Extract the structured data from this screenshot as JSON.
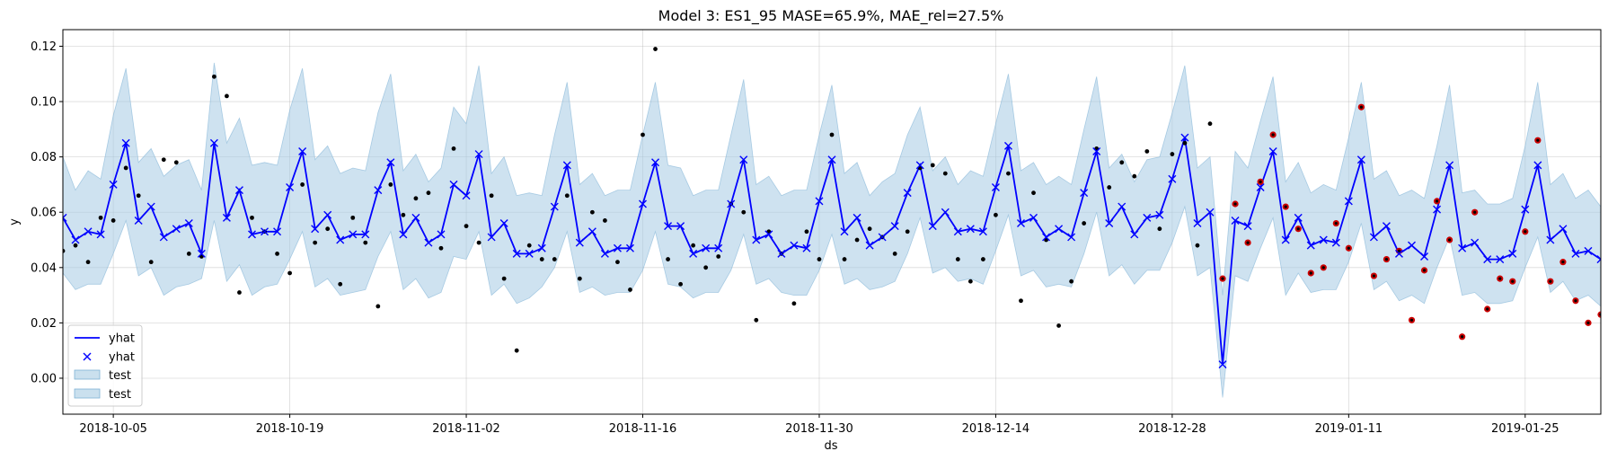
{
  "chart_data": {
    "type": "line",
    "title": "Model 3: ES1_95 MASE=65.9%, MAE_rel=27.5%",
    "xlabel": "ds",
    "ylabel": "y",
    "x_start": "2018-10-01",
    "x_end": "2019-01-31",
    "ylim": [
      -0.013,
      0.126
    ],
    "yticks": [
      "0.00",
      "0.02",
      "0.04",
      "0.06",
      "0.08",
      "0.10",
      "0.12"
    ],
    "ytick_values": [
      0.0,
      0.02,
      0.04,
      0.06,
      0.08,
      0.1,
      0.12
    ],
    "xticks": [
      {
        "date": "2018-10-05",
        "label": "2018-10-05"
      },
      {
        "date": "2018-10-19",
        "label": "2018-10-19"
      },
      {
        "date": "2018-11-02",
        "label": "2018-11-02"
      },
      {
        "date": "2018-11-16",
        "label": "2018-11-16"
      },
      {
        "date": "2018-11-30",
        "label": "2018-11-30"
      },
      {
        "date": "2018-12-14",
        "label": "2018-12-14"
      },
      {
        "date": "2018-12-28",
        "label": "2018-12-28"
      },
      {
        "date": "2019-01-11",
        "label": "2019-01-11"
      },
      {
        "date": "2019-01-25",
        "label": "2019-01-25"
      }
    ],
    "grid": true,
    "legend_position": "lower-left",
    "legend": [
      {
        "label": "yhat",
        "kind": "line"
      },
      {
        "label": "yhat",
        "kind": "marker"
      },
      {
        "label": "test",
        "kind": "band"
      },
      {
        "label": "test",
        "kind": "band"
      }
    ],
    "colors": {
      "yhat": "#0000ff",
      "band": "#a6cbe3",
      "band_edge": "#7fb3d5",
      "actual": "#000000",
      "test_point": "#cc0000"
    },
    "start_date": "2018-10-01",
    "yhat": [
      0.058,
      0.05,
      0.053,
      0.052,
      0.07,
      0.085,
      0.057,
      0.062,
      0.051,
      0.054,
      0.056,
      0.045,
      0.085,
      0.058,
      0.068,
      0.052,
      0.053,
      0.053,
      0.069,
      0.082,
      0.054,
      0.059,
      0.05,
      0.052,
      0.052,
      0.068,
      0.078,
      0.052,
      0.058,
      0.049,
      0.052,
      0.07,
      0.066,
      0.081,
      0.051,
      0.056,
      0.045,
      0.045,
      0.047,
      0.062,
      0.077,
      0.049,
      0.053,
      0.045,
      0.047,
      0.047,
      0.063,
      0.078,
      0.055,
      0.055,
      0.045,
      0.047,
      0.047,
      0.063,
      0.079,
      0.05,
      0.052,
      0.045,
      0.048,
      0.047,
      0.064,
      0.079,
      0.053,
      0.058,
      0.048,
      0.051,
      0.055,
      0.067,
      0.077,
      0.055,
      0.06,
      0.053,
      0.054,
      0.053,
      0.069,
      0.084,
      0.056,
      0.058,
      0.051,
      0.054,
      0.051,
      0.067,
      0.082,
      0.056,
      0.062,
      0.052,
      0.058,
      0.059,
      0.072,
      0.087,
      0.056,
      0.06,
      0.005,
      0.057,
      0.055,
      0.069,
      0.082,
      0.05,
      0.058,
      0.048,
      0.05,
      0.049,
      0.064,
      0.079,
      0.051,
      0.055,
      0.045,
      0.048,
      0.044,
      0.061,
      0.077,
      0.047,
      0.049,
      0.043,
      0.043,
      0.045,
      0.061,
      0.077,
      0.05,
      0.054,
      0.045,
      0.046,
      0.043
    ],
    "band_upper": [
      0.08,
      0.068,
      0.075,
      0.072,
      0.095,
      0.112,
      0.078,
      0.083,
      0.073,
      0.077,
      0.079,
      0.068,
      0.114,
      0.085,
      0.094,
      0.077,
      0.078,
      0.077,
      0.097,
      0.112,
      0.079,
      0.084,
      0.074,
      0.076,
      0.075,
      0.096,
      0.11,
      0.075,
      0.081,
      0.071,
      0.076,
      0.098,
      0.092,
      0.113,
      0.074,
      0.08,
      0.066,
      0.067,
      0.066,
      0.088,
      0.107,
      0.07,
      0.074,
      0.066,
      0.068,
      0.068,
      0.088,
      0.107,
      0.077,
      0.076,
      0.066,
      0.068,
      0.068,
      0.088,
      0.108,
      0.07,
      0.073,
      0.066,
      0.068,
      0.068,
      0.088,
      0.106,
      0.074,
      0.078,
      0.066,
      0.071,
      0.074,
      0.088,
      0.098,
      0.075,
      0.08,
      0.07,
      0.075,
      0.073,
      0.092,
      0.11,
      0.075,
      0.078,
      0.07,
      0.073,
      0.07,
      0.09,
      0.109,
      0.076,
      0.081,
      0.071,
      0.079,
      0.08,
      0.096,
      0.113,
      0.076,
      0.08,
      0.03,
      0.082,
      0.076,
      0.093,
      0.109,
      0.071,
      0.078,
      0.067,
      0.07,
      0.068,
      0.087,
      0.107,
      0.072,
      0.075,
      0.066,
      0.068,
      0.065,
      0.084,
      0.106,
      0.067,
      0.068,
      0.063,
      0.063,
      0.065,
      0.084,
      0.107,
      0.07,
      0.074,
      0.065,
      0.068,
      0.062
    ],
    "band_lower": [
      0.038,
      0.032,
      0.034,
      0.034,
      0.045,
      0.057,
      0.037,
      0.04,
      0.03,
      0.033,
      0.034,
      0.036,
      0.057,
      0.035,
      0.041,
      0.03,
      0.033,
      0.034,
      0.043,
      0.053,
      0.033,
      0.036,
      0.03,
      0.031,
      0.032,
      0.044,
      0.053,
      0.032,
      0.036,
      0.029,
      0.031,
      0.044,
      0.043,
      0.053,
      0.03,
      0.034,
      0.027,
      0.029,
      0.033,
      0.04,
      0.053,
      0.031,
      0.033,
      0.03,
      0.031,
      0.031,
      0.039,
      0.053,
      0.034,
      0.033,
      0.029,
      0.031,
      0.031,
      0.039,
      0.052,
      0.034,
      0.036,
      0.031,
      0.03,
      0.03,
      0.039,
      0.052,
      0.034,
      0.036,
      0.032,
      0.033,
      0.035,
      0.045,
      0.058,
      0.038,
      0.04,
      0.035,
      0.036,
      0.034,
      0.046,
      0.059,
      0.037,
      0.039,
      0.033,
      0.034,
      0.033,
      0.045,
      0.06,
      0.037,
      0.041,
      0.034,
      0.039,
      0.039,
      0.049,
      0.062,
      0.037,
      0.04,
      -0.007,
      0.037,
      0.035,
      0.047,
      0.058,
      0.03,
      0.038,
      0.031,
      0.032,
      0.032,
      0.042,
      0.056,
      0.032,
      0.035,
      0.028,
      0.03,
      0.027,
      0.04,
      0.051,
      0.03,
      0.031,
      0.027,
      0.027,
      0.028,
      0.04,
      0.051,
      0.031,
      0.035,
      0.028,
      0.03,
      0.026
    ],
    "actual": [
      0.046,
      0.048,
      0.042,
      0.058,
      0.057,
      0.076,
      0.066,
      0.042,
      0.079,
      0.078,
      0.045,
      0.044,
      0.109,
      0.102,
      0.031,
      0.058,
      0.053,
      0.045,
      0.038,
      0.07,
      0.049,
      0.054,
      0.034,
      0.058,
      0.049,
      0.026,
      0.07,
      0.059,
      0.065,
      0.067,
      0.047,
      0.083,
      0.055,
      0.049,
      0.066,
      0.036,
      0.01,
      0.048,
      0.043,
      0.043,
      0.066,
      0.036,
      0.06,
      0.057,
      0.042,
      0.032,
      0.088,
      0.119,
      0.043,
      0.034,
      0.048,
      0.04,
      0.044,
      0.063,
      0.06,
      0.021,
      0.053,
      0.045,
      0.027,
      0.053,
      0.043,
      0.088,
      0.043,
      0.05,
      0.054,
      0.051,
      0.045,
      0.053,
      0.076,
      0.077,
      0.074,
      0.043,
      0.035,
      0.043,
      0.059,
      0.074,
      0.028,
      0.067,
      0.05,
      0.019,
      0.035,
      0.056,
      0.083,
      0.069,
      0.078,
      0.073,
      0.082,
      0.054,
      0.081,
      0.085,
      0.048,
      0.092,
      0.036,
      0.063,
      0.049,
      0.071,
      0.088,
      0.062,
      0.054,
      0.038,
      0.04,
      0.056,
      0.047,
      0.098,
      0.037,
      0.043,
      0.046,
      0.021,
      0.039,
      0.064,
      0.05,
      0.015,
      0.06,
      0.025,
      0.036,
      0.035,
      0.053,
      0.086,
      0.035,
      0.042,
      0.028,
      0.02,
      0.023
    ],
    "test_start_index": 92
  }
}
